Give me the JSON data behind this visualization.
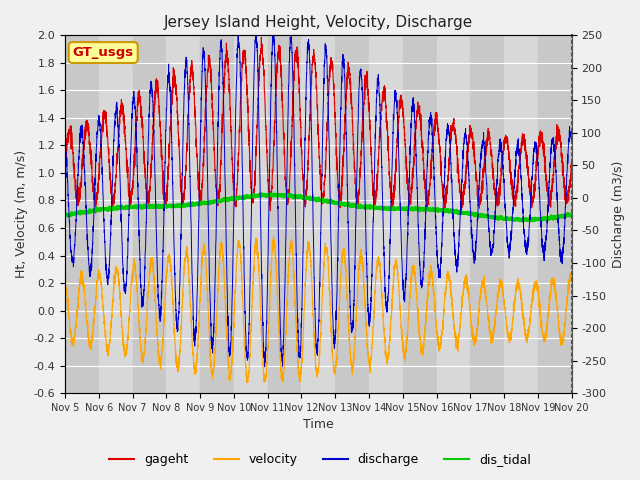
{
  "title": "Jersey Island Height, Velocity, Discharge",
  "xlabel": "Time",
  "ylabel_left": "Ht, Velocity (m, m/s)",
  "ylabel_right": "Discharge (m3/s)",
  "ylim_left": [
    -0.6,
    2.0
  ],
  "ylim_right": [
    -300,
    250
  ],
  "xlim_days": [
    5,
    20
  ],
  "xtick_labels": [
    "Nov 5",
    "Nov 6",
    "Nov 7",
    "Nov 8",
    "Nov 9",
    "Nov 10",
    "Nov 11",
    "Nov 12",
    "Nov 13",
    "Nov 14",
    "Nov 15",
    "Nov 16",
    "Nov 17",
    "Nov 18",
    "Nov 19",
    "Nov 20"
  ],
  "colors": {
    "gageht": "#dd0000",
    "velocity": "#ffa500",
    "discharge": "#0000cc",
    "dis_tidal": "#00cc00"
  },
  "legend_label": "GT_usgs",
  "legend_box_color": "#ffff99",
  "legend_box_edge": "#cc9900",
  "plot_bg": "#d8d8d8",
  "fig_bg": "#f0f0f0",
  "band_even": "#c8c8c8",
  "band_odd": "#d8d8d8",
  "grid_color": "#ffffff"
}
